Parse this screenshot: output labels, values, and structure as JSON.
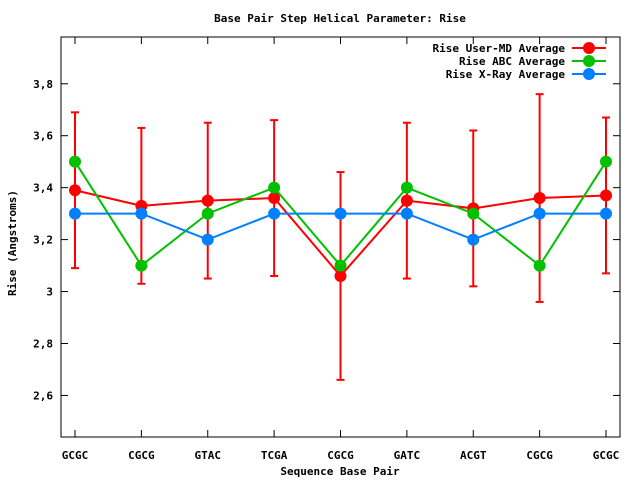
{
  "chart_data": {
    "type": "line",
    "title": "Base Pair Step Helical Parameter: Rise",
    "xlabel": "Sequence Base Pair",
    "ylabel": "Rise (Angstroms)",
    "categories": [
      "GCGC",
      "CGCG",
      "GTAC",
      "TCGA",
      "CGCG",
      "GATC",
      "ACGT",
      "CGCG",
      "GCGC"
    ],
    "ylim": [
      2.44,
      3.98
    ],
    "yticks": [
      2.6,
      2.8,
      3,
      3.2,
      3.4,
      3.6,
      3.8
    ],
    "ytick_labels": [
      "2,6",
      "2,8",
      "3",
      "3,2",
      "3,4",
      "3,6",
      "3,8"
    ],
    "legend_position": "top-right",
    "series": [
      {
        "name": "Rise User-MD Average",
        "color": "#ff0000",
        "values": [
          3.39,
          3.33,
          3.35,
          3.36,
          3.06,
          3.35,
          3.32,
          3.36,
          3.37
        ],
        "error_low": [
          3.09,
          3.03,
          3.05,
          3.06,
          2.66,
          3.05,
          3.02,
          2.96,
          3.07
        ],
        "error_high": [
          3.69,
          3.63,
          3.65,
          3.66,
          3.46,
          3.65,
          3.62,
          3.76,
          3.67
        ]
      },
      {
        "name": "Rise ABC Average",
        "color": "#00c000",
        "values": [
          3.5,
          3.1,
          3.3,
          3.4,
          3.1,
          3.4,
          3.3,
          3.1,
          3.5
        ]
      },
      {
        "name": "Rise X-Ray Average",
        "color": "#0080ff",
        "values": [
          3.3,
          3.3,
          3.2,
          3.3,
          3.3,
          3.3,
          3.2,
          3.3,
          3.3
        ]
      }
    ]
  }
}
